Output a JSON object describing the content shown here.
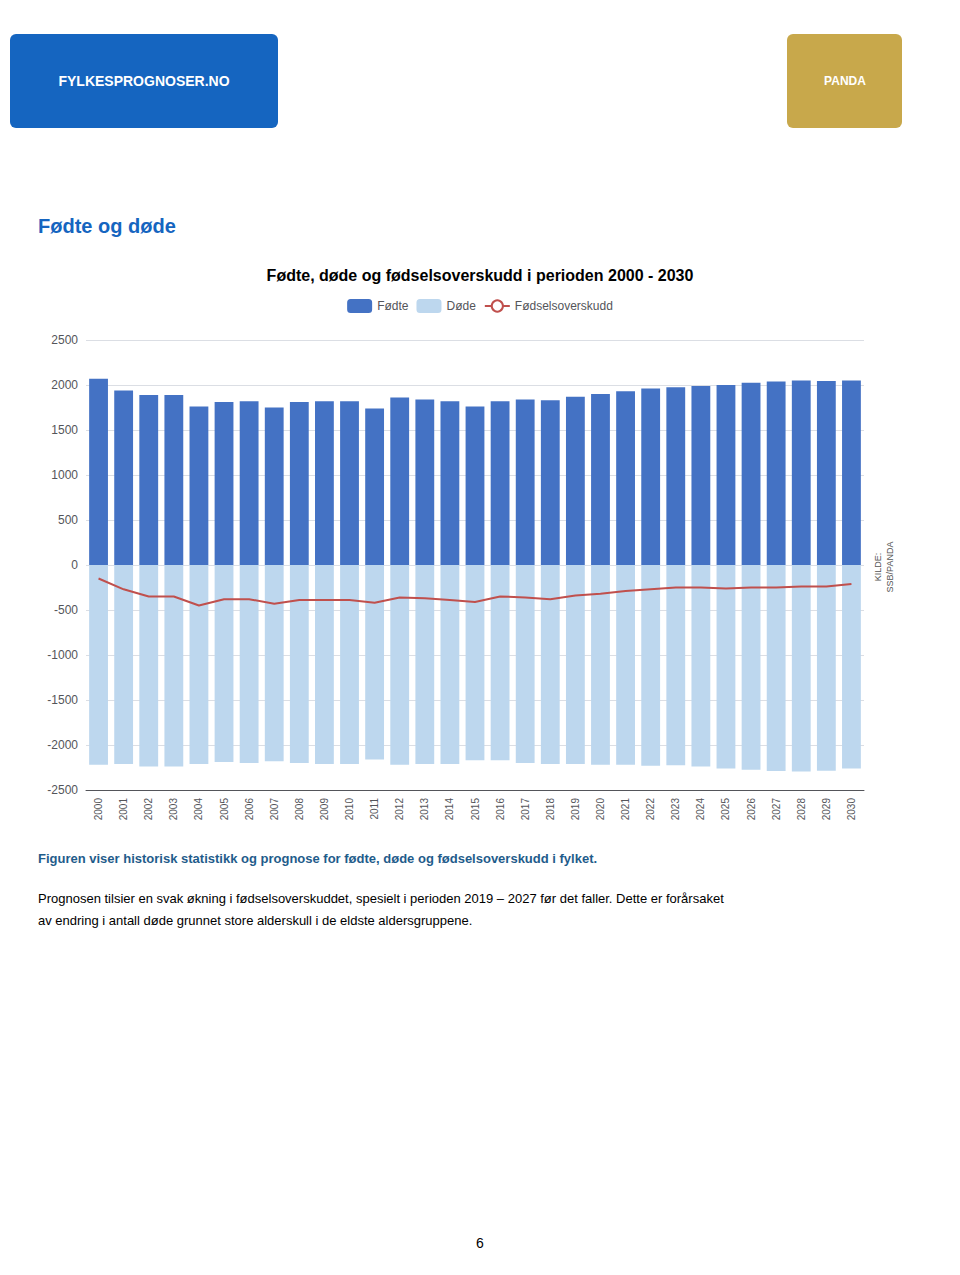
{
  "chart_data": {
    "type": "bar",
    "title": "Fødte, døde og fødselsoverskudd i perioden 2000 - 2030",
    "categories": [
      2000,
      2001,
      2002,
      2003,
      2004,
      2005,
      2006,
      2007,
      2008,
      2009,
      2010,
      2011,
      2012,
      2013,
      2014,
      2015,
      2016,
      2017,
      2018,
      2019,
      2020,
      2021,
      2022,
      2023,
      2024,
      2025,
      2026,
      2027,
      2028,
      2029,
      2030
    ],
    "series": [
      {
        "name": "Fødte",
        "type": "bar",
        "color": "#4472C4",
        "values": [
          2070,
          1940,
          1890,
          1890,
          1760,
          1810,
          1820,
          1750,
          1810,
          1820,
          1820,
          1740,
          1860,
          1840,
          1820,
          1760,
          1820,
          1840,
          1830,
          1870,
          1900,
          1930,
          1960,
          1975,
          1990,
          2000,
          2025,
          2040,
          2050,
          2045,
          2050
        ]
      },
      {
        "name": "Døde",
        "type": "bar",
        "color": "#BDD7EE",
        "values": [
          -2220,
          -2210,
          -2240,
          -2240,
          -2210,
          -2190,
          -2200,
          -2180,
          -2200,
          -2210,
          -2210,
          -2160,
          -2220,
          -2210,
          -2210,
          -2170,
          -2170,
          -2200,
          -2210,
          -2210,
          -2220,
          -2220,
          -2230,
          -2225,
          -2240,
          -2260,
          -2275,
          -2290,
          -2295,
          -2285,
          -2260
        ]
      },
      {
        "name": "Fødselsoverskudd",
        "type": "line",
        "color": "#C0504D",
        "values": [
          -150,
          -270,
          -350,
          -350,
          -450,
          -380,
          -380,
          -430,
          -390,
          -390,
          -390,
          -420,
          -360,
          -370,
          -390,
          -410,
          -350,
          -360,
          -380,
          -340,
          -320,
          -290,
          -270,
          -250,
          -250,
          -260,
          -250,
          -250,
          -240,
          -240,
          -210
        ]
      }
    ],
    "ylim": [
      -2500,
      2500
    ],
    "yticks": [
      -2500,
      -2000,
      -1500,
      -1000,
      -500,
      0,
      500,
      1000,
      1500,
      2000,
      2500
    ],
    "grid": true,
    "legend": "top",
    "annotations": [
      "Fødte og døde",
      "KILDE:\nSSB/PANDA",
      "Figuren viser historisk statistikk og prognose for fødte, døde og fødselsoverskudd i fylket.",
      "Prognosen tilsier en svak økning i fødselsoverskuddet, spesielt i perioden 2019 – 2027 før det faller. Dette er forårsaket",
      "av endring i antall døde grunnet store alderskull i de eldste aldersgruppene.",
      "6",
      "FYLKESPROGNOSER.NO",
      "PANDA"
    ]
  }
}
